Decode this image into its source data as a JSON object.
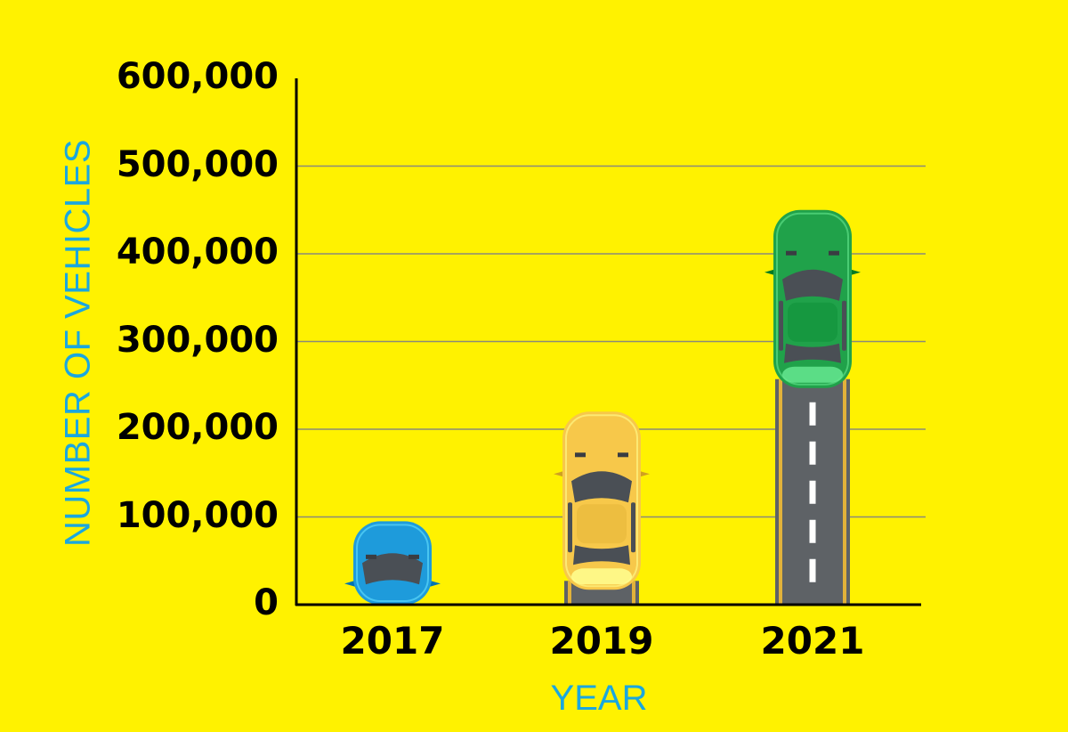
{
  "chart_data": {
    "type": "bar",
    "categories": [
      "2017",
      "2019",
      "2021"
    ],
    "values": [
      95000,
      220000,
      450000
    ],
    "xlabel": "YEAR",
    "ylabel": "NUMBER OF VEHICLES",
    "ylim": [
      0,
      600000
    ],
    "yticks": [
      "0",
      "100,000",
      "200,000",
      "300,000",
      "400,000",
      "500,000",
      "600,000"
    ],
    "grid": true,
    "bar_style": "car-on-road",
    "colors": {
      "background": "#FFF200",
      "axis_label": "#1AA7DF",
      "bar_2017": "#1E9BDB",
      "bar_2019": "#F7C84A",
      "bar_2021": "#20A24A",
      "road": "#5E6266",
      "road_edge": "#E2B23A",
      "road_dash": "#FFFFFF",
      "grid": "#8A8A7A"
    }
  }
}
